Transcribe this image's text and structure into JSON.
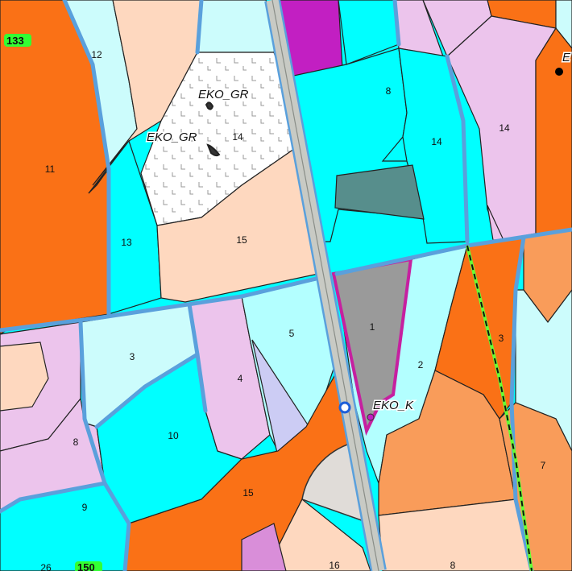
{
  "map": {
    "parcel_labels": {
      "p12": "12",
      "p11": "11",
      "p13": "13",
      "p14_left": "14",
      "p15_top": "15",
      "p8_top": "8",
      "p14_mid": "14",
      "p14_right": "14",
      "p1": "1",
      "p2": "2",
      "p3_right": "3",
      "p5": "5",
      "p4": "4",
      "p3_left": "3",
      "p8_left": "8",
      "p10": "10",
      "p9": "9",
      "p15_bottom": "15",
      "p16": "16",
      "p8_bottom": "8",
      "p7": "7",
      "p26": "26"
    },
    "annotations": {
      "eko_gr_1": "EKO_GR",
      "eko_gr_2": "EKO_GR",
      "eko_k": "EKO_K",
      "corner_label": "E"
    },
    "road_numbers": {
      "r133": "133",
      "r150": "150"
    },
    "legend_colors": {
      "cyan": "#00ffff",
      "light_cyan": "#b3ffff",
      "pale_blue": "#ccfcfc",
      "orange": "#fa7116",
      "light_orange": "#f99c5a",
      "peach": "#fed8bf",
      "lavender": "#ecc4ec",
      "magenta": "#c21fc2",
      "forest_pattern": "#ffffff",
      "dark_teal_parcel": "#578e8c",
      "highlight_parcel_fill": "#9a9a9a",
      "highlight_parcel_outline": "#c620a0",
      "road_badge": "#33ff33",
      "boundary_line_green": "#66ff33"
    }
  }
}
